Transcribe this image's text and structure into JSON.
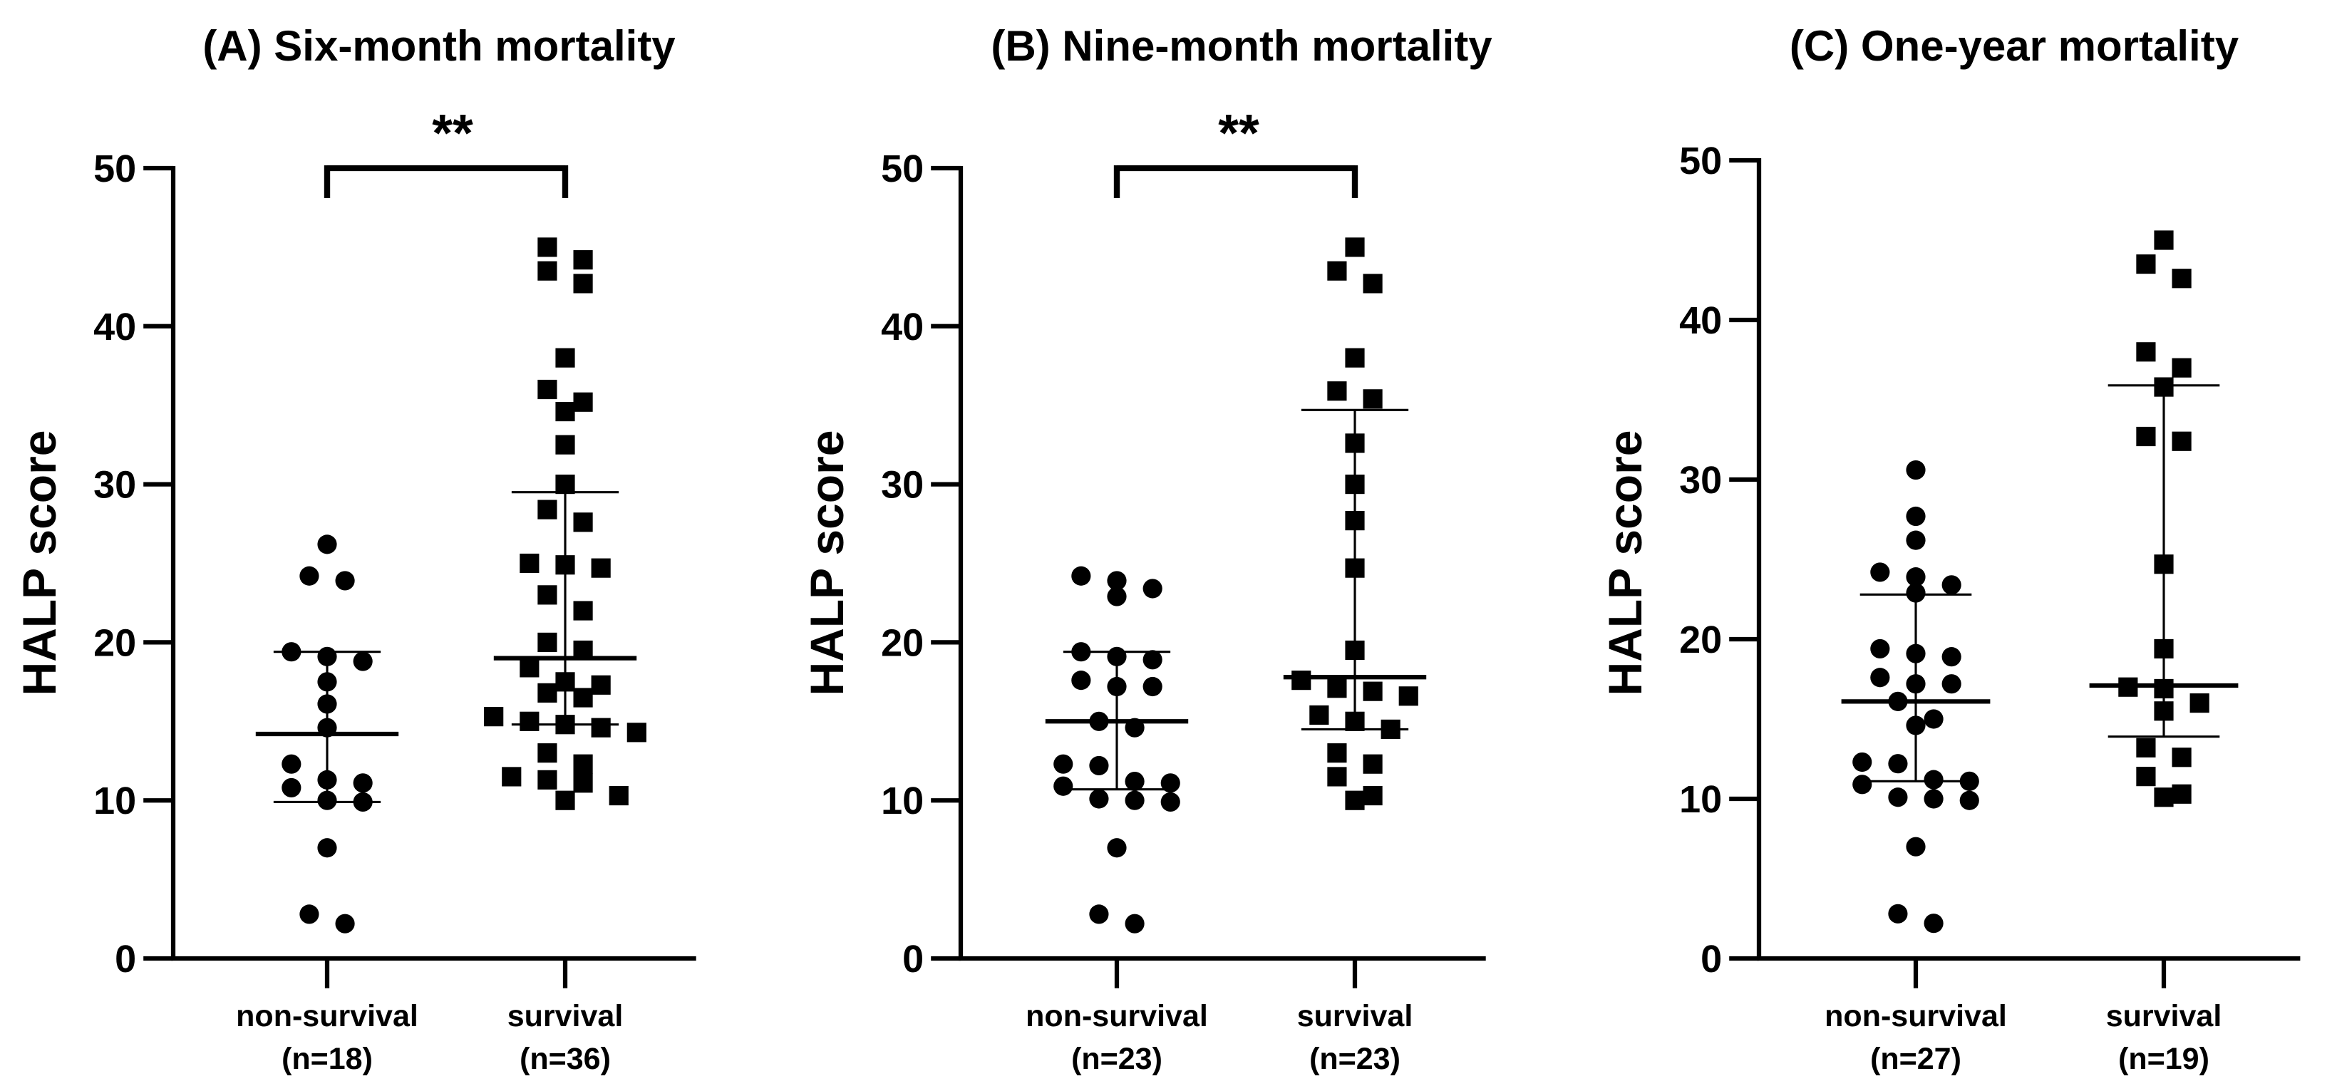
{
  "chart_data": [
    {
      "type": "scatter",
      "title": "(A) Six-month mortality",
      "ylabel": "HALP score",
      "ylim": [
        0,
        50
      ],
      "yticks": [
        0,
        10,
        20,
        30,
        40,
        50
      ],
      "groups": [
        {
          "name": "non-survival",
          "n_label": "(n=18)",
          "marker": "circle",
          "center": 14.2,
          "err_low": 9.9,
          "err_high": 19.4,
          "values": [
            26.2,
            24.2,
            23.9,
            19.4,
            19.1,
            18.8,
            17.5,
            16.1,
            14.6,
            12.3,
            11.3,
            11.1,
            10.8,
            10.0,
            9.9,
            7.0,
            2.8,
            2.2
          ]
        },
        {
          "name": "survival",
          "n_label": "(n=36)",
          "marker": "square",
          "center": 19.0,
          "err_low": 14.8,
          "err_high": 29.5,
          "values": [
            45.0,
            44.2,
            43.5,
            42.7,
            38.0,
            36.0,
            35.2,
            34.6,
            32.5,
            30.0,
            28.4,
            27.6,
            25.0,
            24.9,
            24.7,
            23.0,
            22.0,
            20.0,
            19.5,
            18.4,
            17.5,
            17.3,
            16.8,
            16.5,
            15.3,
            15.0,
            14.8,
            14.6,
            14.3,
            13.0,
            12.3,
            11.5,
            11.3,
            11.1,
            10.3,
            10.0
          ]
        }
      ],
      "significance": {
        "label": "**",
        "y": 50.0
      }
    },
    {
      "type": "scatter",
      "title": "(B) Nine-month mortality",
      "ylabel": "HALP score",
      "ylim": [
        0,
        50
      ],
      "yticks": [
        0,
        10,
        20,
        30,
        40,
        50
      ],
      "groups": [
        {
          "name": "non-survival",
          "n_label": "(n=23)",
          "marker": "circle",
          "center": 15.0,
          "err_low": 10.7,
          "err_high": 19.4,
          "values": [
            24.2,
            23.9,
            23.4,
            22.9,
            19.4,
            19.1,
            18.9,
            17.6,
            17.2,
            17.2,
            15.0,
            14.6,
            12.3,
            12.2,
            11.2,
            11.1,
            10.9,
            10.1,
            10.0,
            9.9,
            7.0,
            2.8,
            2.2
          ]
        },
        {
          "name": "survival",
          "n_label": "(n=23)",
          "marker": "square",
          "center": 17.8,
          "err_low": 14.5,
          "err_high": 34.7,
          "values": [
            45.0,
            43.5,
            42.7,
            38.0,
            35.9,
            35.4,
            32.6,
            30.0,
            27.7,
            24.7,
            19.5,
            17.6,
            17.1,
            16.9,
            16.6,
            15.4,
            15.0,
            14.5,
            13.0,
            12.3,
            11.5,
            10.3,
            10.0
          ]
        }
      ],
      "significance": {
        "label": "**",
        "y": 50.0
      }
    },
    {
      "type": "scatter",
      "title": "(C) One-year mortality",
      "ylabel": "HALP score",
      "ylim": [
        0,
        50
      ],
      "yticks": [
        0,
        10,
        20,
        30,
        40,
        50
      ],
      "groups": [
        {
          "name": "non-survival",
          "n_label": "(n=27)",
          "marker": "circle",
          "center": 16.1,
          "err_low": 11.1,
          "err_high": 22.8,
          "values": [
            30.6,
            27.7,
            26.2,
            24.2,
            23.9,
            23.4,
            22.9,
            19.4,
            19.1,
            18.9,
            17.6,
            17.2,
            17.2,
            16.1,
            15.0,
            14.6,
            12.3,
            12.2,
            11.2,
            11.1,
            10.9,
            10.1,
            10.0,
            9.9,
            7.0,
            2.8,
            2.2
          ]
        },
        {
          "name": "survival",
          "n_label": "(n=19)",
          "marker": "square",
          "center": 17.1,
          "err_low": 13.9,
          "err_high": 35.9,
          "values": [
            45.0,
            43.5,
            42.6,
            38.0,
            37.0,
            35.8,
            32.7,
            32.4,
            24.7,
            19.4,
            17.0,
            16.9,
            16.0,
            15.5,
            13.2,
            12.6,
            11.4,
            10.3,
            10.1
          ]
        }
      ],
      "significance": null
    }
  ]
}
